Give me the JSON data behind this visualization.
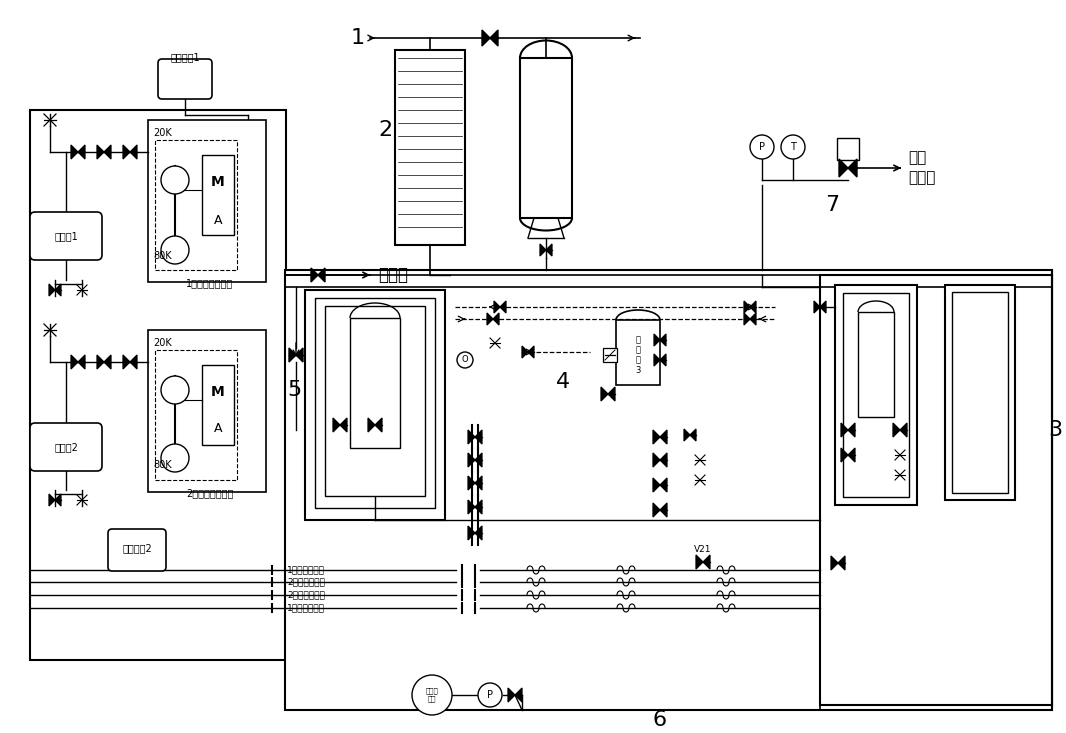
{
  "bg_color": "#ffffff",
  "fig_width": 10.66,
  "fig_height": 7.33,
  "texts": {
    "label1": "1",
    "label2": "2",
    "label3": "3",
    "label4": "4",
    "label5": "5",
    "label6": "6",
    "label7": "7",
    "liq_n2": "液氮源",
    "n2_line1": "氮回",
    "n2_line2": "收系统",
    "cooler1_label": "1号斯特林制冷机",
    "cooler2_label": "2号斯特林制冷机",
    "water_cooler1": "水冷机组1",
    "water_cooler2": "水冷机组2",
    "buffer1": "缓冲储1",
    "buffer2": "缓冲储2",
    "20K": "20K",
    "80K": "80K",
    "return1": "1号制冷机回流",
    "return2": "2号制冷机回流",
    "supply2": "2号制冷机来流",
    "supply1": "1号制冷机来流",
    "V21": "V21",
    "liq_n2_tank": "液氮罐\n3",
    "mol_pump": "分子泵\n机组",
    "M_text": "M",
    "A_text": "A"
  }
}
